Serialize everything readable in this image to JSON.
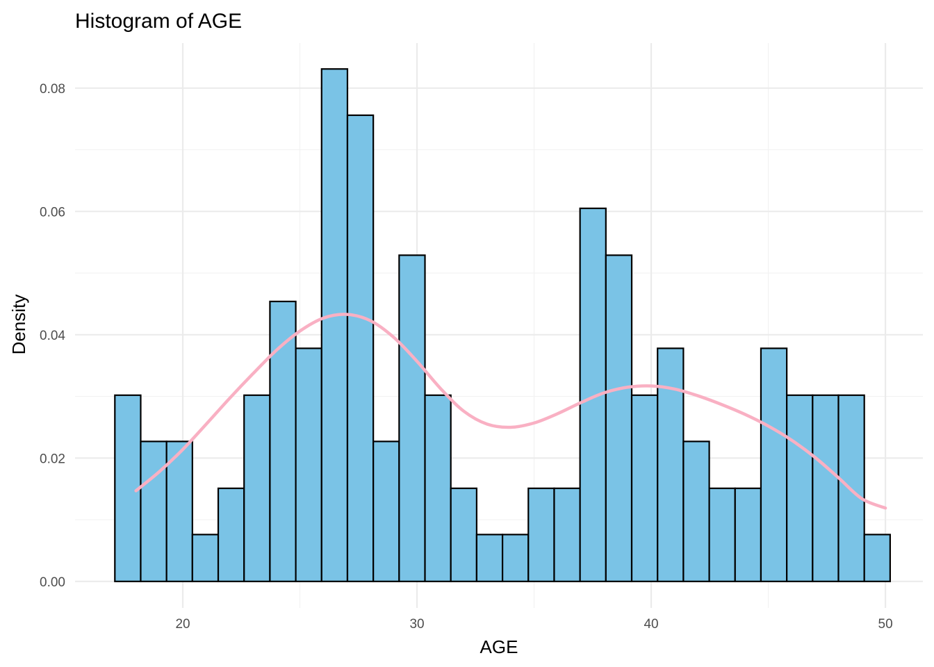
{
  "chart_data": {
    "type": "bar",
    "title": "Histogram of AGE",
    "xlabel": "AGE",
    "ylabel": "Density",
    "xlim": [
      15.4,
      51.6
    ],
    "ylim": [
      -0.0043,
      0.0873
    ],
    "x_ticks": [
      20,
      30,
      40,
      50
    ],
    "x_tick_labels": [
      "20",
      "30",
      "40",
      "50"
    ],
    "y_ticks": [
      0,
      0.02,
      0.04,
      0.06,
      0.08
    ],
    "y_tick_labels": [
      "0.00",
      "0.02",
      "0.04",
      "0.06",
      "0.08"
    ],
    "x_minor_ticks": [
      25,
      35,
      45
    ],
    "y_minor_ticks": [
      0.01,
      0.03,
      0.05,
      0.07
    ],
    "grid": true,
    "bin_start": 17.1,
    "bin_width": 1.1034,
    "values": [
      0.0302,
      0.0227,
      0.0227,
      0.0076,
      0.0151,
      0.0302,
      0.0454,
      0.0378,
      0.0831,
      0.0756,
      0.0227,
      0.0529,
      0.0302,
      0.0151,
      0.0076,
      0.0076,
      0.0151,
      0.0151,
      0.0605,
      0.0529,
      0.0302,
      0.0378,
      0.0227,
      0.0151,
      0.0151,
      0.0378,
      0.0302,
      0.0302,
      0.0302,
      0.0076
    ],
    "density_curve": {
      "x": [
        18,
        19,
        20,
        21,
        22,
        23,
        24,
        25,
        26,
        27,
        28,
        29,
        30,
        31,
        32,
        33,
        34,
        35,
        36,
        37,
        38,
        39,
        40,
        41,
        42,
        43,
        44,
        45,
        46,
        47,
        48,
        49,
        50
      ],
      "y": [
        0.0147,
        0.0178,
        0.0214,
        0.0255,
        0.0297,
        0.0337,
        0.0375,
        0.0406,
        0.0427,
        0.0433,
        0.0423,
        0.0396,
        0.0357,
        0.0313,
        0.0276,
        0.0255,
        0.025,
        0.0257,
        0.0272,
        0.029,
        0.0306,
        0.0315,
        0.0317,
        0.0312,
        0.0301,
        0.0287,
        0.0271,
        0.0252,
        0.0229,
        0.0201,
        0.0168,
        0.0134,
        0.0119
      ]
    },
    "colors": {
      "bar_fill": "#7ac3e6",
      "bar_outline": "#000000",
      "density_line": "#f9b0c3"
    }
  }
}
